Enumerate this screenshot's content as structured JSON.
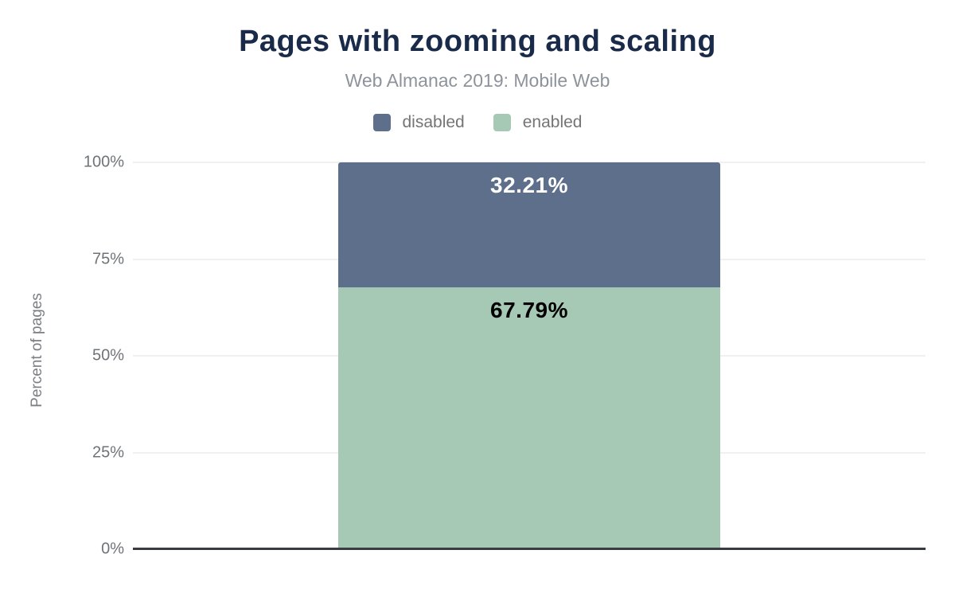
{
  "header": {
    "title": "Pages with zooming and scaling",
    "subtitle": "Web Almanac 2019: Mobile Web"
  },
  "chart_data": {
    "type": "bar",
    "stacked": true,
    "orientation": "vertical",
    "title": "Pages with zooming and scaling",
    "subtitle": "Web Almanac 2019: Mobile Web",
    "categories": [
      ""
    ],
    "series": [
      {
        "name": "disabled",
        "value": 32.21,
        "label": "32.21%",
        "color": "#5d6f8b",
        "label_color": "#ffffff",
        "stack_position": "top"
      },
      {
        "name": "enabled",
        "value": 67.79,
        "label": "67.79%",
        "color": "#a6c9b6",
        "label_color": "#000000",
        "stack_position": "bottom"
      }
    ],
    "xlabel": "",
    "ylabel": "Percent of pages",
    "ylim": [
      0,
      100
    ],
    "yticks": [
      0,
      25,
      50,
      75,
      100
    ],
    "ytick_labels": [
      "0%",
      "25%",
      "50%",
      "75%",
      "100%"
    ],
    "grid": "horizontal",
    "legend_position": "top",
    "baseline_color": "#383b40",
    "gridline_color": "#f0f0f0"
  }
}
